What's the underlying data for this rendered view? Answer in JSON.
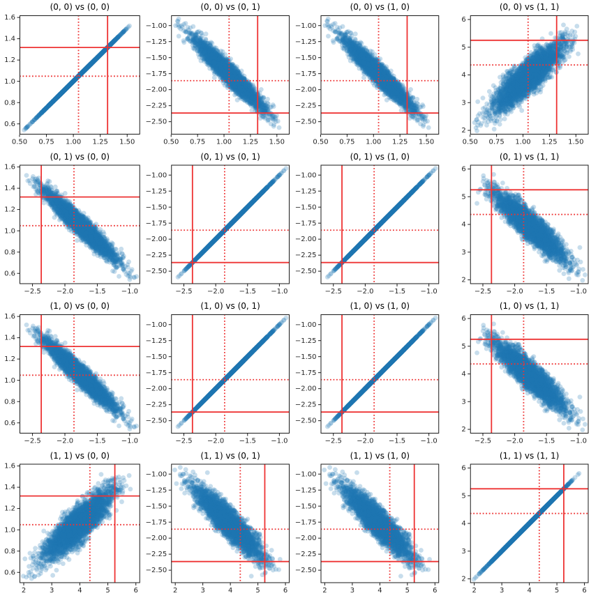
{
  "chart_data": {
    "type": "scatter",
    "subtype": "scatter-matrix-4x4",
    "background": "#ffffff",
    "marker": {
      "color": "#1f77b4",
      "alpha": 0.25,
      "radius_px": 3.4
    },
    "ref_lines": {
      "color": "#ee3333",
      "solid_width": 1.8,
      "dotted_width": 1.8
    },
    "axis": {
      "spine_color": "#1a1a1a",
      "tick_label_color": "#262626",
      "grid": false
    },
    "generation": {
      "n_points": 3500,
      "seed": 42,
      "corr_v0_v1": -0.95,
      "corr_v1_v3": -0.9,
      "v2_equals_v1": true
    },
    "variables": [
      {
        "name": "(0, 0)",
        "mean": 1.05,
        "std": 0.155,
        "lim": [
          0.5,
          1.62
        ],
        "solid_line": 1.318,
        "dotted_line": 1.048,
        "xticks": {
          "values": [
            0.5,
            0.75,
            1.0,
            1.25,
            1.5
          ],
          "labels": [
            "0.50",
            "0.75",
            "1.00",
            "1.25",
            "1.50"
          ]
        },
        "yticks": {
          "values": [
            0.6,
            0.8,
            1.0,
            1.2,
            1.4,
            1.6
          ],
          "labels": [
            "0.6",
            "0.8",
            "1.0",
            "1.2",
            "1.4",
            "1.6"
          ]
        }
      },
      {
        "name": "(0, 1)",
        "mean": -1.76,
        "std": 0.26,
        "lim": [
          -2.7,
          -0.84
        ],
        "solid_line": -2.365,
        "dotted_line": -1.86,
        "xticks": {
          "values": [
            -2.5,
            -2.0,
            -1.5,
            -1.0
          ],
          "labels": [
            "−2.5",
            "−2.0",
            "−1.5",
            "−1.0"
          ]
        },
        "yticks": {
          "values": [
            -1.0,
            -1.25,
            -1.5,
            -1.75,
            -2.0,
            -2.25,
            -2.5
          ],
          "labels": [
            "−1.00",
            "−1.25",
            "−1.50",
            "−1.75",
            "−2.00",
            "−2.25",
            "−2.50"
          ]
        }
      },
      {
        "name": "(1, 0)",
        "mean": -1.76,
        "std": 0.26,
        "lim": [
          -2.7,
          -0.84
        ],
        "solid_line": -2.365,
        "dotted_line": -1.86,
        "xticks": {
          "values": [
            -2.5,
            -2.0,
            -1.5,
            -1.0
          ],
          "labels": [
            "−2.5",
            "−2.0",
            "−1.5",
            "−1.0"
          ]
        },
        "yticks": {
          "values": [
            -1.0,
            -1.25,
            -1.5,
            -1.75,
            -2.0,
            -2.25,
            -2.5
          ],
          "labels": [
            "−1.00",
            "−1.25",
            "−1.50",
            "−1.75",
            "−2.00",
            "−2.25",
            "−2.50"
          ]
        }
      },
      {
        "name": "(1, 1)",
        "mean": 3.95,
        "std": 0.58,
        "lim": [
          1.85,
          6.15
        ],
        "solid_line": 5.25,
        "dotted_line": 4.36,
        "xticks": {
          "values": [
            2,
            3,
            4,
            5,
            6
          ],
          "labels": [
            "2",
            "3",
            "4",
            "5",
            "6"
          ]
        },
        "yticks": {
          "values": [
            2,
            3,
            4,
            5,
            6
          ],
          "labels": [
            "2",
            "3",
            "4",
            "5",
            "6"
          ]
        }
      }
    ],
    "panels": [
      {
        "row": 0,
        "col": 0,
        "title": "(0, 0) vs (0, 0)"
      },
      {
        "row": 0,
        "col": 1,
        "title": "(0, 0) vs (0, 1)"
      },
      {
        "row": 0,
        "col": 2,
        "title": "(0, 0) vs (1, 0)"
      },
      {
        "row": 0,
        "col": 3,
        "title": "(0, 0) vs (1, 1)"
      },
      {
        "row": 1,
        "col": 0,
        "title": "(0, 1) vs (0, 0)"
      },
      {
        "row": 1,
        "col": 1,
        "title": "(0, 1) vs (0, 1)"
      },
      {
        "row": 1,
        "col": 2,
        "title": "(0, 1) vs (1, 0)"
      },
      {
        "row": 1,
        "col": 3,
        "title": "(0, 1) vs (1, 1)"
      },
      {
        "row": 2,
        "col": 0,
        "title": "(1, 0) vs (0, 0)"
      },
      {
        "row": 2,
        "col": 1,
        "title": "(1, 0) vs (0, 1)"
      },
      {
        "row": 2,
        "col": 2,
        "title": "(1, 0) vs (1, 0)"
      },
      {
        "row": 2,
        "col": 3,
        "title": "(1, 0) vs (1, 1)"
      },
      {
        "row": 3,
        "col": 0,
        "title": "(1, 1) vs (0, 0)"
      },
      {
        "row": 3,
        "col": 1,
        "title": "(1, 1) vs (0, 1)"
      },
      {
        "row": 3,
        "col": 2,
        "title": "(1, 1) vs (1, 0)"
      },
      {
        "row": 3,
        "col": 3,
        "title": "(1, 1) vs (1, 1)"
      }
    ]
  }
}
